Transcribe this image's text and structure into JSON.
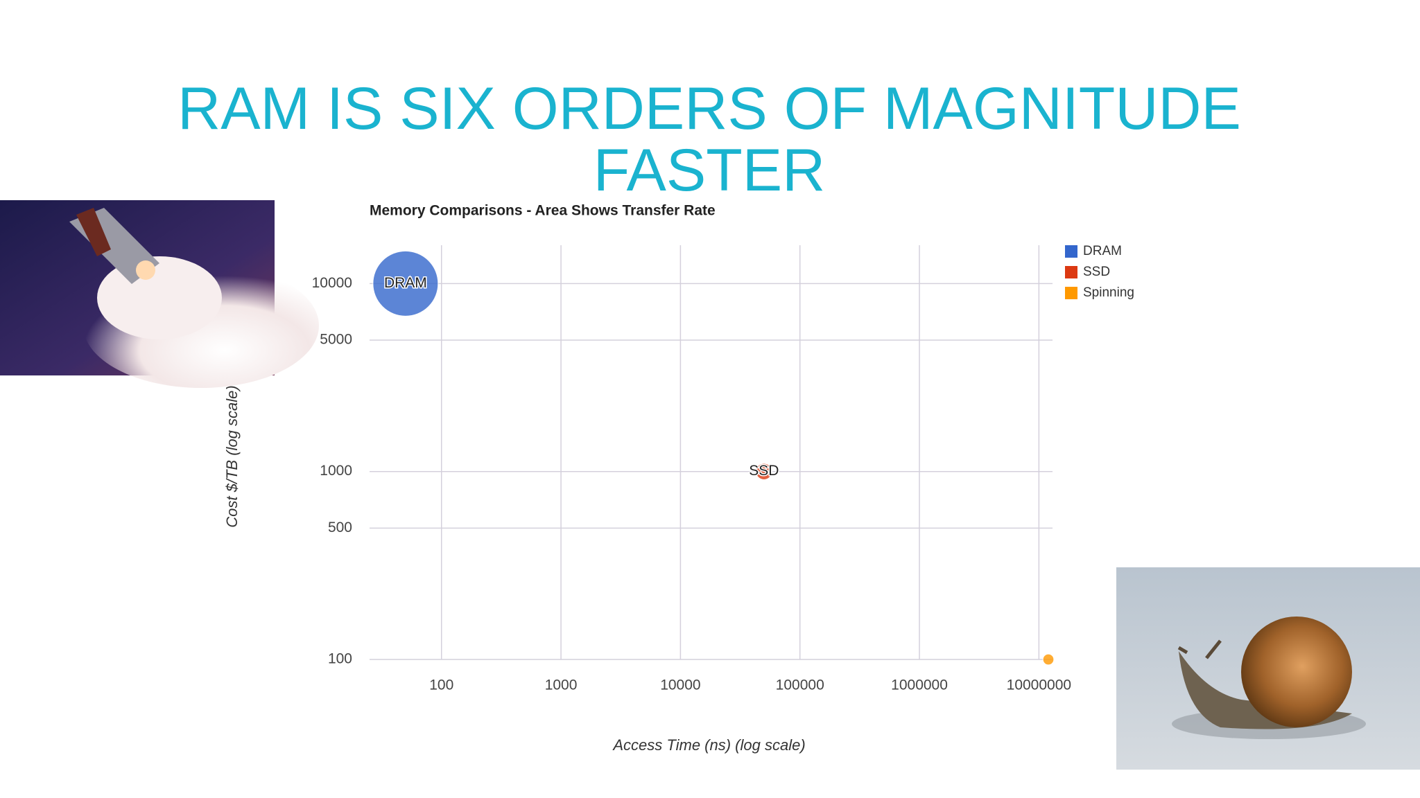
{
  "slide_title": "RAM IS SIX ORDERS OF MAGNITUDE FASTER",
  "chart_data": {
    "type": "bubble",
    "title": "Memory Comparisons - Area Shows Transfer Rate",
    "x_label": "Access Time (ns) (log scale)",
    "y_label": "Cost $/TB (log scale)",
    "xscale": "log",
    "yscale": "log",
    "grid": true,
    "legend": "right",
    "xlim": [
      25,
      13000000
    ],
    "xticks": [
      100,
      1000,
      10000,
      100000,
      1000000,
      10000000
    ],
    "ylim": [
      100,
      16000
    ],
    "yticks": [
      100,
      500,
      1000,
      5000,
      10000
    ],
    "series": [
      {
        "name": "DRAM",
        "color": "#3366cc",
        "x": [
          50
        ],
        "values": [
          10000
        ],
        "sizes": [
          16
        ]
      },
      {
        "name": "SSD",
        "color": "#dc3912",
        "x": [
          50000
        ],
        "values": [
          1000
        ],
        "sizes": [
          1
        ]
      },
      {
        "name": "Spinning",
        "color": "#ff9900",
        "x": [
          12000000
        ],
        "values": [
          100
        ],
        "sizes": [
          0.45
        ]
      }
    ]
  }
}
